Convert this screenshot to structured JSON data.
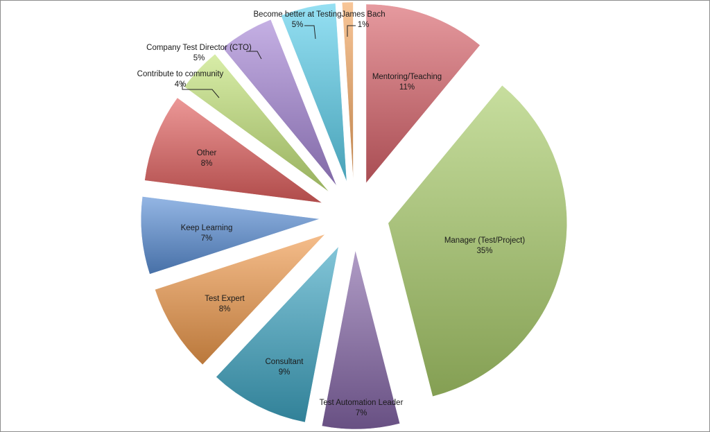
{
  "chart_data": {
    "type": "pie",
    "title": "",
    "slices": [
      {
        "label": "Mentoring/Teaching",
        "value_label": "11%",
        "value": 11,
        "color": "#d9636b"
      },
      {
        "label": "Manager (Test/Project)",
        "value_label": "35%",
        "value": 35,
        "color": "#a9cc6a"
      },
      {
        "label": "Test Automation Leader",
        "value_label": "7%",
        "value": 7,
        "color": "#8566a8"
      },
      {
        "label": "Consultant",
        "value_label": "9%",
        "value": 9,
        "color": "#3fa6c3"
      },
      {
        "label": "Test Expert",
        "value_label": "8%",
        "value": 8,
        "color": "#ef9a4c"
      },
      {
        "label": "Keep Learning",
        "value_label": "7%",
        "value": 7,
        "color": "#5b8fd6"
      },
      {
        "label": "Other",
        "value_label": "8%",
        "value": 8,
        "color": "#e2605f"
      },
      {
        "label": "Contribute to community",
        "value_label": "4%",
        "value": 4,
        "color": "#c3e379"
      },
      {
        "label": "Company Test Director (CTO)",
        "value_label": "5%",
        "value": 5,
        "color": "#a686d6"
      },
      {
        "label": "Become better at Testing",
        "value_label": "5%",
        "value": 5,
        "color": "#5cd0ec"
      },
      {
        "label": "James Bach",
        "value_label": "1%",
        "value": 1,
        "color": "#f4a760"
      }
    ]
  }
}
